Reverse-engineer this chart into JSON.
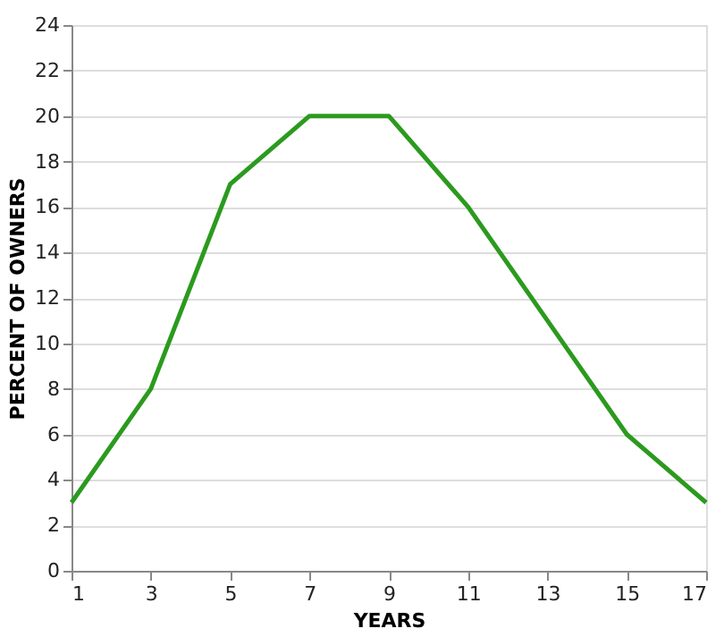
{
  "chart_data": {
    "type": "line",
    "xlabel": "YEARS",
    "ylabel": "PERCENT OF OWNERS",
    "x": [
      1,
      3,
      5,
      7,
      9,
      11,
      13,
      15,
      17
    ],
    "series": [
      {
        "color": "#2b9a1e",
        "values": [
          3,
          8,
          17,
          20,
          20,
          16,
          11,
          6,
          3
        ]
      }
    ],
    "xlim": [
      1,
      17
    ],
    "xticks": [
      1,
      3,
      5,
      7,
      9,
      11,
      13,
      15,
      17
    ],
    "ylim": [
      0,
      24
    ],
    "yticks": [
      0,
      2,
      4,
      6,
      8,
      10,
      12,
      14,
      16,
      18,
      20,
      22,
      24
    ],
    "grid": "y",
    "marker": "none",
    "line_style": "solid",
    "legend": false
  }
}
